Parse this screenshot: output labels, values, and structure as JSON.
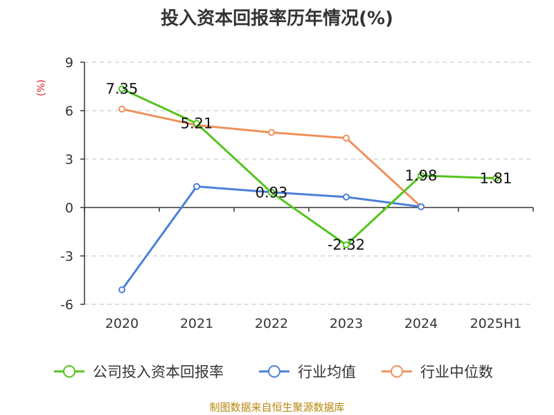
{
  "chart_data": {
    "type": "line",
    "title": "投入资本回报率历年情况(%)",
    "ylabel": "(%)",
    "xlabel": "",
    "categories": [
      "2020",
      "2021",
      "2022",
      "2023",
      "2024",
      "2025H1"
    ],
    "ylim": [
      -6,
      9
    ],
    "yticks": [
      9,
      6,
      3,
      0,
      -3,
      -6
    ],
    "grid": true,
    "legend_position": "bottom",
    "series": [
      {
        "name": "公司投入资本回报率",
        "color": "#52c41a",
        "values": [
          7.35,
          5.21,
          0.93,
          -2.32,
          1.98,
          1.81
        ],
        "labels": [
          "7.35",
          "5.21",
          "0.93",
          "-2.32",
          "1.98",
          "1.81"
        ]
      },
      {
        "name": "行业均值",
        "color": "#4a7fd8",
        "values": [
          -5.1,
          1.3,
          0.95,
          0.65,
          0.05,
          null
        ]
      },
      {
        "name": "行业中位数",
        "color": "#f0905a",
        "values": [
          6.1,
          5.1,
          4.65,
          4.3,
          0.05,
          null
        ]
      }
    ]
  },
  "source": "制图数据来自恒生聚源数据库"
}
